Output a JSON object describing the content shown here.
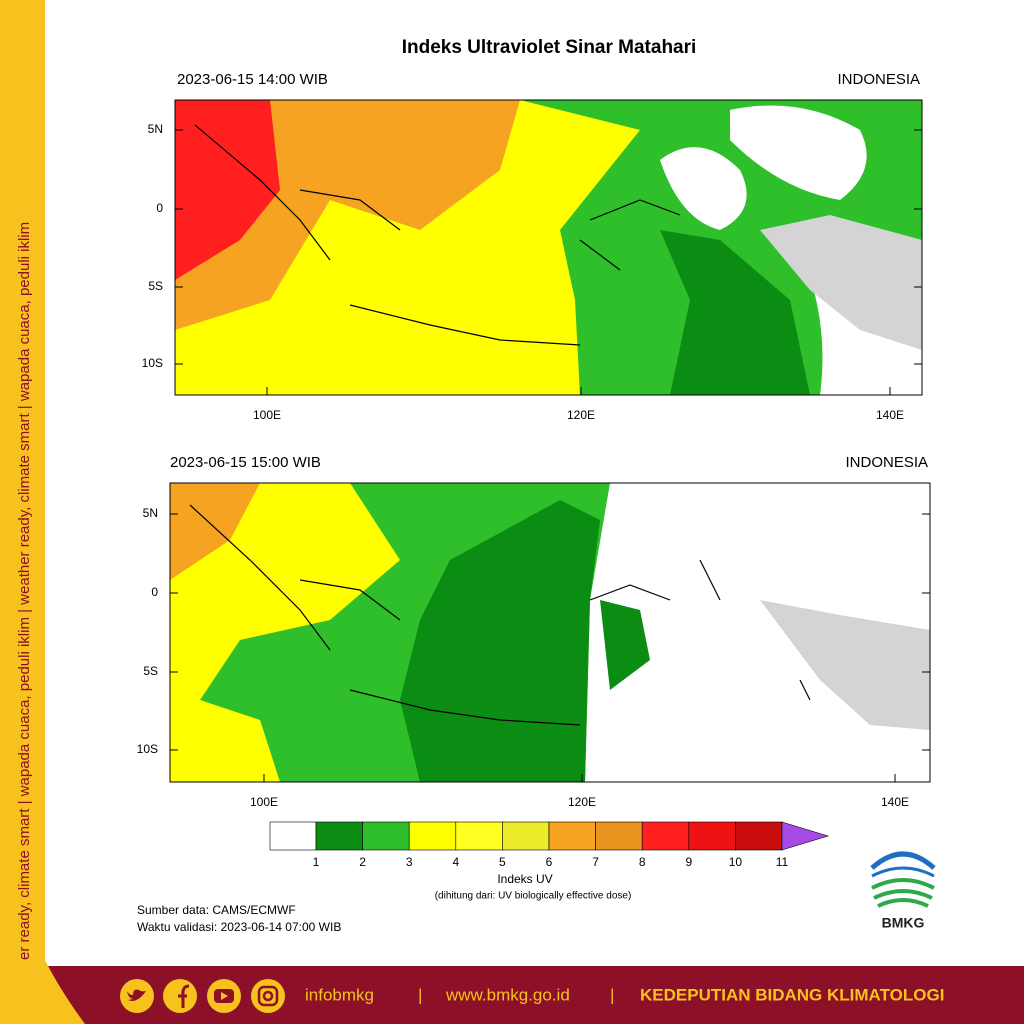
{
  "side_text": "weather ready, climate smart  |  wapada cuaca, peduli iklim  |  weather ready, climate smart  |  wapada cuaca, peduli iklim",
  "title": "Indeks Ultraviolet Sinar Matahari",
  "maps": [
    {
      "datetime": "2023-06-15  14:00 WIB",
      "region": "INDONESIA"
    },
    {
      "datetime": "2023-06-15  15:00 WIB",
      "region": "INDONESIA"
    }
  ],
  "lat_labels": [
    "5N",
    "0",
    "5S",
    "10S"
  ],
  "lon_labels": [
    "100E",
    "120E",
    "140E"
  ],
  "colorbar": {
    "levels": [
      "1",
      "2",
      "3",
      "4",
      "5",
      "6",
      "7",
      "8",
      "9",
      "10",
      "11"
    ],
    "colors": [
      "#ffffff",
      "#0b8c12",
      "#2fbf2a",
      "#ffff00",
      "#ffff22",
      "#ebeb2a",
      "#f5a321",
      "#ea9420",
      "#ff1f1f",
      "#ee1212",
      "#c90c0c",
      "#a64ae8"
    ],
    "label": "Indeks UV",
    "note": "(dihitung dari: UV biologically effective dose)"
  },
  "source": "Sumber data: CAMS/ECMWF",
  "valid": "Waktu validasi: 2023-06-14 07:00 WIB",
  "logo": "BMKG",
  "footer": {
    "handle": "infobmkg",
    "sep": "|",
    "url": "www.bmkg.go.id",
    "dept": "KEDEPUTIAN BIDANG KLIMATOLOGI"
  }
}
